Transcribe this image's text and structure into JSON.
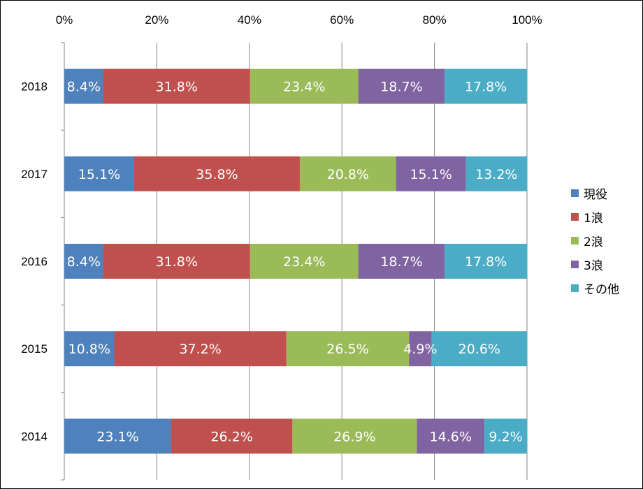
{
  "chart_data": {
    "type": "bar",
    "orientation": "horizontal",
    "stacked": "percent",
    "categories": [
      "2018",
      "2017",
      "2016",
      "2015",
      "2014"
    ],
    "series": [
      {
        "name": "現役",
        "color": "#4F81BD",
        "values": [
          8.4,
          15.1,
          8.4,
          10.8,
          23.1
        ]
      },
      {
        "name": "1浪",
        "color": "#C0504D",
        "values": [
          31.8,
          35.8,
          31.8,
          37.2,
          26.2
        ]
      },
      {
        "name": "2浪",
        "color": "#9BBB59",
        "values": [
          23.4,
          20.8,
          23.4,
          26.5,
          26.9
        ]
      },
      {
        "name": "3浪",
        "color": "#8064A2",
        "values": [
          18.7,
          15.1,
          18.7,
          4.9,
          14.6
        ]
      },
      {
        "name": "その他",
        "color": "#4BACC6",
        "values": [
          17.8,
          13.2,
          17.8,
          20.6,
          9.2
        ]
      }
    ],
    "x_ticks": [
      "0%",
      "20%",
      "40%",
      "60%",
      "80%",
      "100%"
    ],
    "xlim": [
      0,
      100
    ],
    "x_axis_position": "top",
    "grid": true,
    "data_labels": true,
    "legend_position": "right",
    "title": "",
    "xlabel": "",
    "ylabel": ""
  }
}
